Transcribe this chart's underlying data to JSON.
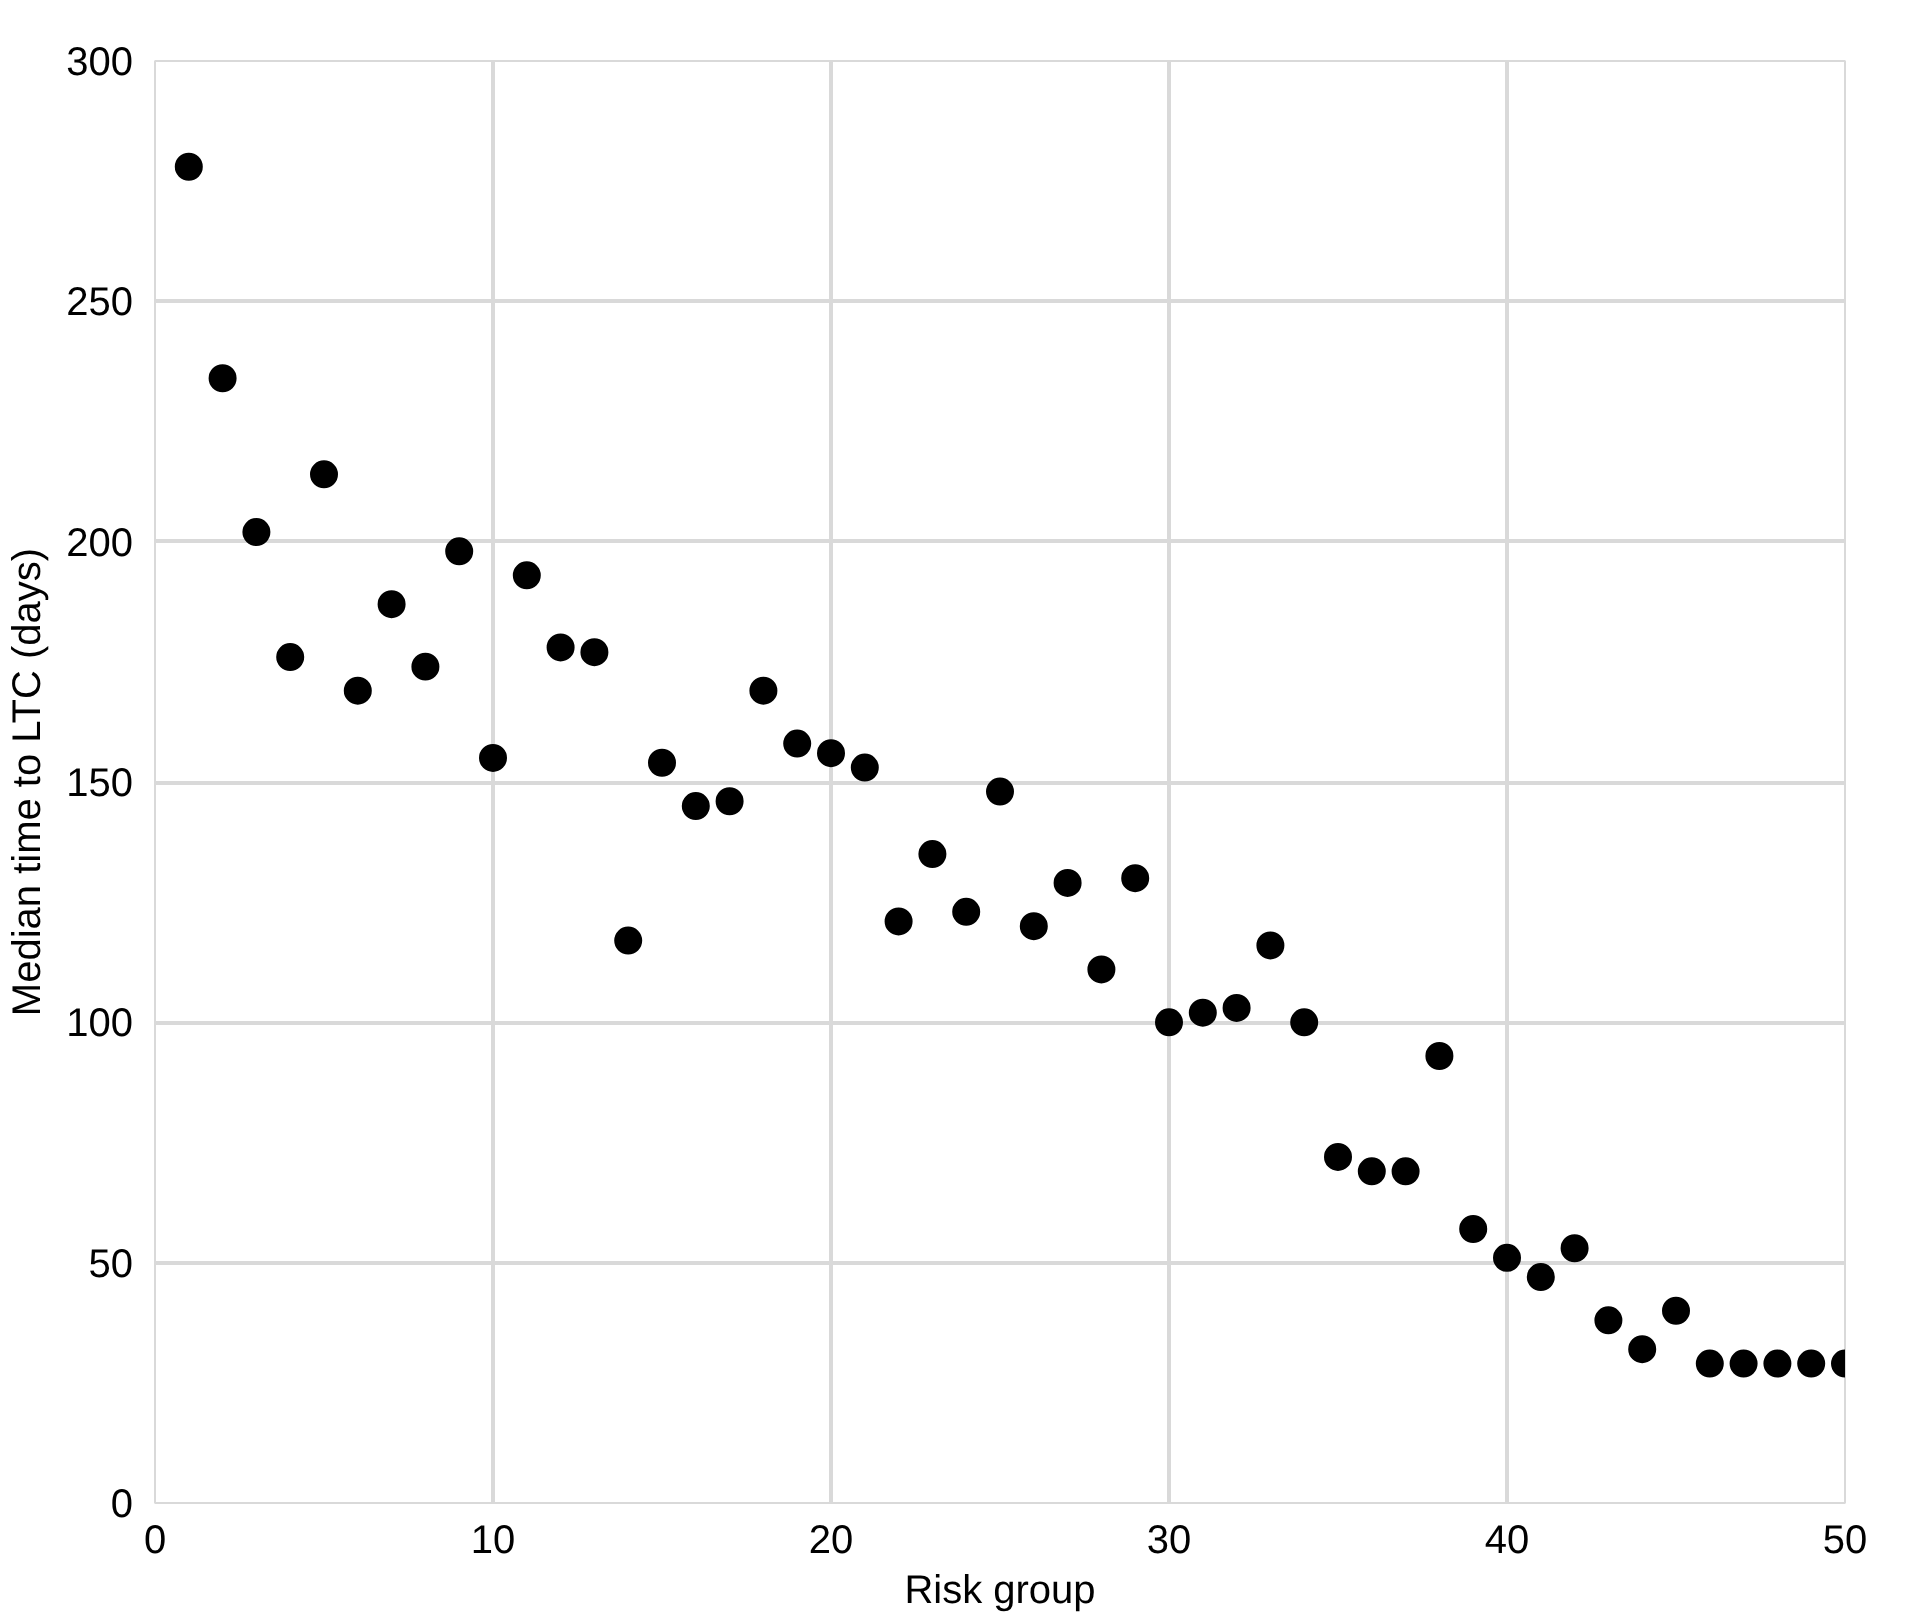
{
  "chart_data": {
    "type": "scatter",
    "xlabel": "Risk group",
    "ylabel": "Median time to LTC (days)",
    "x": [
      1,
      2,
      3,
      4,
      5,
      6,
      7,
      8,
      9,
      10,
      11,
      12,
      13,
      14,
      15,
      16,
      17,
      18,
      19,
      20,
      21,
      22,
      23,
      24,
      25,
      26,
      27,
      28,
      29,
      30,
      31,
      32,
      33,
      34,
      35,
      36,
      37,
      38,
      39,
      40,
      41,
      42,
      43,
      44,
      45,
      46,
      47,
      48,
      49,
      50
    ],
    "series": [
      {
        "color": "#000000",
        "values": [
          278,
          234,
          202,
          176,
          214,
          169,
          187,
          174,
          198,
          155,
          193,
          178,
          177,
          117,
          154,
          145,
          146,
          169,
          158,
          156,
          153,
          121,
          135,
          123,
          148,
          120,
          129,
          111,
          130,
          100,
          102,
          103,
          116,
          100,
          72,
          69,
          69,
          93,
          57,
          51,
          47,
          53,
          38,
          32,
          40,
          29,
          29,
          29,
          29,
          29
        ]
      }
    ],
    "xlim": [
      0,
      50
    ],
    "xticks": [
      0,
      10,
      20,
      30,
      40,
      50
    ],
    "ylim": [
      0,
      300
    ],
    "yticks": [
      0,
      50,
      100,
      150,
      200,
      250,
      300
    ],
    "grid": true,
    "marker": "circle"
  }
}
